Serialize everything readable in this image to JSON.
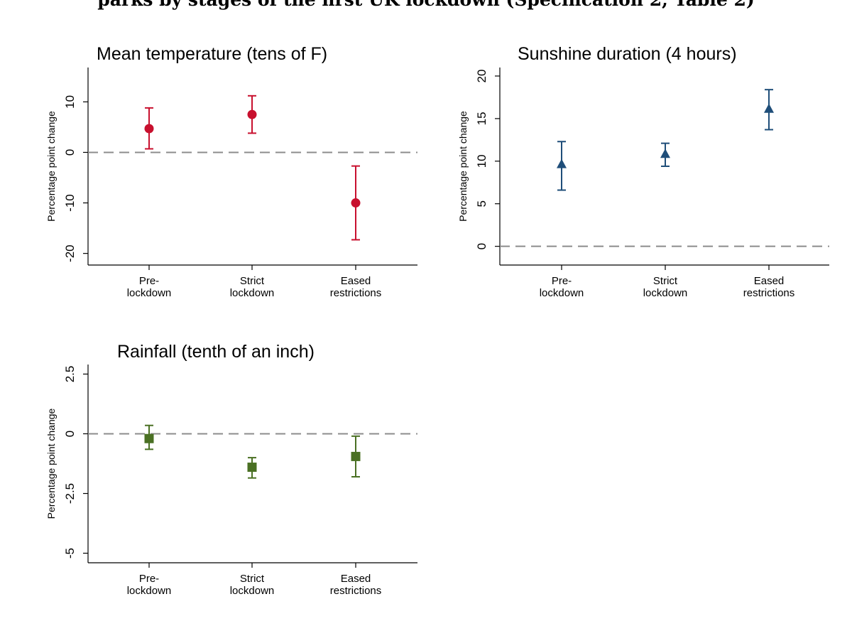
{
  "figure_title": "parks by stages of the first UK lockdown (Specification 2, Table 2)",
  "chart_data": [
    {
      "type": "scatter",
      "title": "Mean temperature (tens of F)",
      "ylabel": "Percentage point change",
      "xlabel": "",
      "categories": [
        "Pre-\nlockdown",
        "Strict\nlockdown",
        "Eased\nrestrictions"
      ],
      "series": [
        {
          "values": [
            4.7,
            7.5,
            -10.0
          ],
          "ci_low": [
            0.7,
            3.8,
            -17.3
          ],
          "ci_high": [
            8.8,
            11.2,
            -2.7
          ]
        }
      ],
      "yticks": [
        -20,
        -10,
        0,
        10
      ],
      "ylim": [
        -22.3,
        16.8
      ],
      "reference_line": 0,
      "marker": "circle",
      "color": "#c8102e",
      "grid": false
    },
    {
      "type": "scatter",
      "title": "Sunshine duration (4 hours)",
      "ylabel": "Percentage point change",
      "xlabel": "",
      "categories": [
        "Pre-\nlockdown",
        "Strict\nlockdown",
        "Eased\nrestrictions"
      ],
      "series": [
        {
          "values": [
            9.6,
            10.8,
            16.1
          ],
          "ci_low": [
            6.6,
            9.4,
            13.7
          ],
          "ci_high": [
            12.3,
            12.1,
            18.4
          ]
        }
      ],
      "yticks": [
        0,
        5,
        10,
        15,
        20
      ],
      "ylim": [
        -2.2,
        21.0
      ],
      "reference_line": 0,
      "marker": "triangle",
      "color": "#1f4e79",
      "grid": false
    },
    {
      "type": "scatter",
      "title": "Rainfall (tenth of an inch)",
      "ylabel": "Percentage point change",
      "xlabel": "",
      "categories": [
        "Pre-\nlockdown",
        "Strict\nlockdown",
        "Eased\nrestrictions"
      ],
      "series": [
        {
          "values": [
            -0.2,
            -1.4,
            -0.95
          ],
          "ci_low": [
            -0.65,
            -1.85,
            -1.8
          ],
          "ci_high": [
            0.35,
            -1.0,
            -0.1
          ]
        }
      ],
      "yticks": [
        -5,
        -2.5,
        0,
        2.5
      ],
      "yticklabels": [
        "-5",
        "-2.5",
        "0",
        "2.5"
      ],
      "ylim": [
        -5.4,
        2.9
      ],
      "reference_line": 0,
      "marker": "square",
      "color": "#4a7023",
      "grid": false
    }
  ]
}
